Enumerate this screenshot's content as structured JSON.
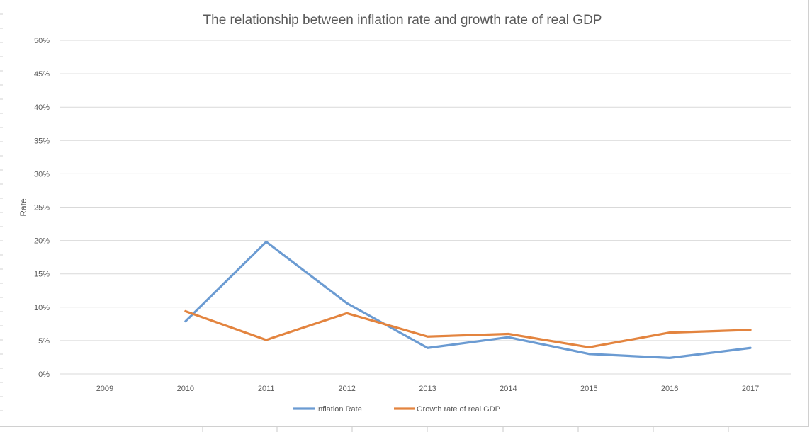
{
  "chart_data": {
    "type": "line",
    "title": "The relationship between inflation rate and growth rate of real GDP",
    "xlabel": "",
    "ylabel": "Rate",
    "categories": [
      "2009",
      "2010",
      "2011",
      "2012",
      "2013",
      "2014",
      "2015",
      "2016",
      "2017"
    ],
    "yticks": [
      "0%",
      "5%",
      "10%",
      "15%",
      "20%",
      "25%",
      "30%",
      "35%",
      "40%",
      "45%",
      "50%"
    ],
    "ylim": [
      0,
      50
    ],
    "grid": true,
    "legend": "bottom",
    "series": [
      {
        "name": "Inflation Rate",
        "color": "#6b9bd2",
        "values": [
          null,
          7.9,
          19.8,
          10.6,
          3.9,
          5.5,
          3.0,
          2.4,
          3.9
        ]
      },
      {
        "name": "Growth rate of real GDP",
        "color": "#e3843f",
        "values": [
          null,
          9.4,
          5.1,
          9.1,
          5.6,
          6.0,
          4.0,
          6.2,
          6.6
        ]
      }
    ]
  }
}
